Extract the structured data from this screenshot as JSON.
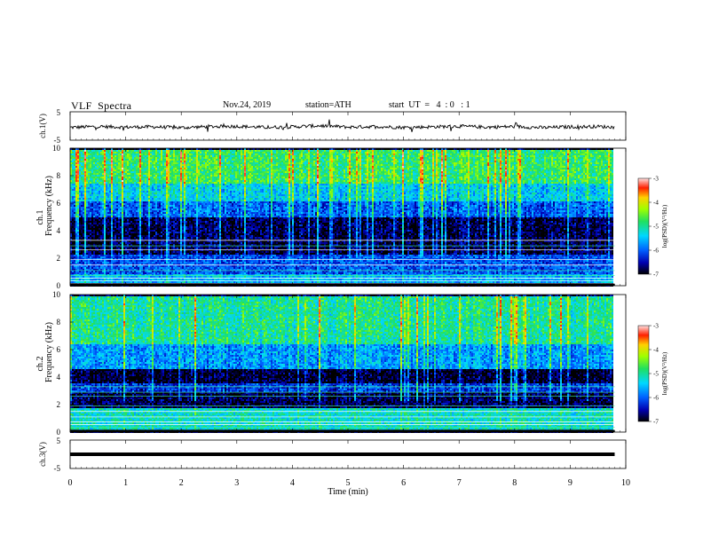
{
  "header": {
    "title": "VLF  Spectra",
    "date": "Nov.24, 2019",
    "station": "station=ATH",
    "start": "start  UT  =   4  : 0   : 1"
  },
  "chart_data": [
    {
      "type": "line",
      "panel": "ch1-waveform",
      "ylabel": "ch.1(V)",
      "yticks": [
        "5",
        "-5"
      ],
      "ylim": [
        -5,
        5
      ],
      "xlim": [
        0,
        9.8
      ],
      "x": [
        0,
        0.5,
        1,
        1.5,
        2,
        2.5,
        3,
        3.5,
        4,
        4.5,
        5,
        5.5,
        6,
        6.5,
        7,
        7.5,
        8,
        8.5,
        9,
        9.5,
        9.8
      ],
      "y": [
        -0.5,
        -0.2,
        -0.4,
        -0.3,
        -0.6,
        -0.2,
        -0.1,
        -0.5,
        -0.3,
        0.1,
        -0.4,
        -0.2,
        -0.5,
        -0.3,
        -0.1,
        -0.4,
        -0.2,
        -0.6,
        -0.3,
        -0.2,
        -0.4
      ]
    },
    {
      "type": "heatmap",
      "panel": "ch1-spectrogram",
      "ylabel_top": "ch.1",
      "ylabel": "Frequency  (kHz)",
      "yticks": [
        "0",
        "2",
        "4",
        "6",
        "8",
        "10"
      ],
      "ylim": [
        0,
        10
      ],
      "xlim": [
        0,
        9.8
      ],
      "colorbar": {
        "label": "log(PSD)(V²/Hz)",
        "ticks": [
          "-3",
          "-4",
          "-5",
          "-6",
          "-7"
        ],
        "range": [
          -7,
          -3
        ]
      },
      "bands": [
        {
          "f0": 0.0,
          "f1": 0.3,
          "level": -7.0
        },
        {
          "f0": 0.3,
          "f1": 0.9,
          "level": -5.6
        },
        {
          "f0": 0.9,
          "f1": 2.3,
          "level": -6.1
        },
        {
          "f0": 2.3,
          "f1": 5.0,
          "level": -6.8
        },
        {
          "f0": 5.0,
          "f1": 6.2,
          "level": -6.0
        },
        {
          "f0": 6.2,
          "f1": 7.5,
          "level": -5.4
        },
        {
          "f0": 7.5,
          "f1": 10.0,
          "level": -4.8
        }
      ]
    },
    {
      "type": "heatmap",
      "panel": "ch2-spectrogram",
      "ylabel_top": "ch.2",
      "ylabel": "Frequency  (kHz)",
      "yticks": [
        "0",
        "2",
        "4",
        "6",
        "8",
        "10"
      ],
      "ylim": [
        0,
        10
      ],
      "xlim": [
        0,
        9.8
      ],
      "colorbar": {
        "label": "log(PSD)(V²/Hz)",
        "ticks": [
          "-3",
          "-4",
          "-5",
          "-6",
          "-7"
        ],
        "range": [
          -7,
          -3
        ]
      },
      "bands": [
        {
          "f0": 0.0,
          "f1": 0.3,
          "level": -6.8
        },
        {
          "f0": 0.3,
          "f1": 1.8,
          "level": -5.2
        },
        {
          "f0": 1.8,
          "f1": 3.0,
          "level": -6.8
        },
        {
          "f0": 3.0,
          "f1": 3.6,
          "level": -6.2
        },
        {
          "f0": 3.6,
          "f1": 4.6,
          "level": -6.9
        },
        {
          "f0": 4.6,
          "f1": 6.5,
          "level": -5.7
        },
        {
          "f0": 6.5,
          "f1": 10.0,
          "level": -5.0
        }
      ]
    },
    {
      "type": "line",
      "panel": "ch3-waveform",
      "ylabel": "ch.3(V)",
      "yticks": [
        "5",
        "-5"
      ],
      "ylim": [
        -5,
        5
      ],
      "xlim": [
        0,
        9.8
      ],
      "x": [
        0,
        9.8
      ],
      "y": [
        0,
        0
      ]
    }
  ],
  "xaxis": {
    "label": "Time  (min)",
    "ticks": [
      "0",
      "1",
      "2",
      "3",
      "4",
      "5",
      "6",
      "7",
      "8",
      "9",
      "10"
    ],
    "range": [
      0,
      10
    ]
  }
}
